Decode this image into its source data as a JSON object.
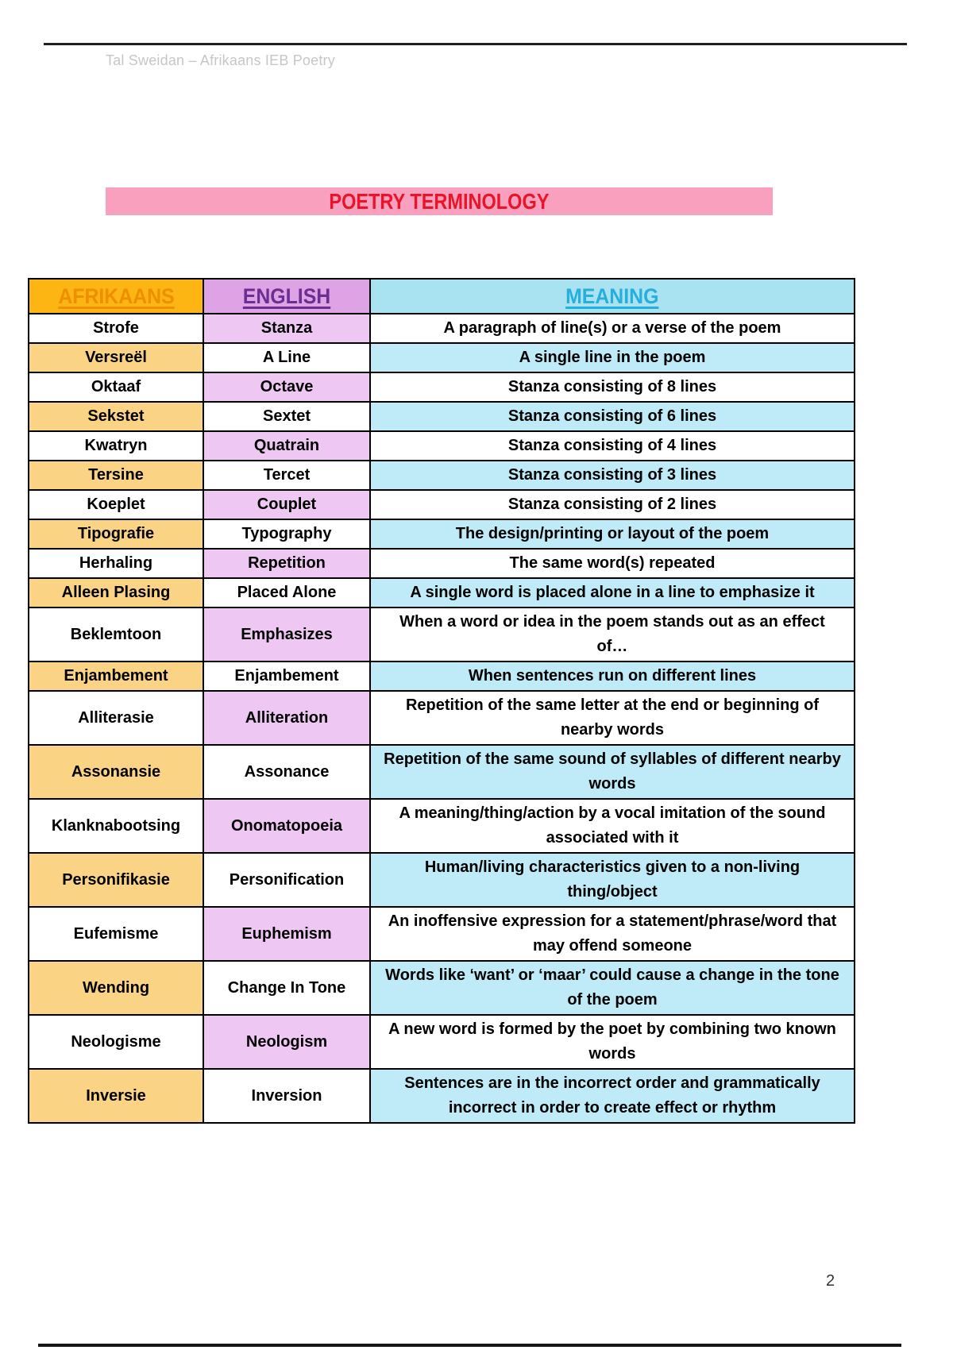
{
  "page": {
    "running_header": "Tal Sweidan – Afrikaans IEB Poetry",
    "page_number": "2"
  },
  "title_banner": {
    "text": "POETRY TERMINOLOGY"
  },
  "colors": {
    "banner_bg": "#F8A0BE",
    "banner_text": "#E81429",
    "header_afrikaans_bg": "#FCB513",
    "header_afrikaans_text": "#EE8F00",
    "header_english_bg": "#DEA3E4",
    "header_english_text": "#6B2E91",
    "header_meaning_bg": "#A9E3F2",
    "header_meaning_text": "#26AEDC",
    "cell_orange": "#FBD385",
    "cell_purple": "#EEC8F2",
    "cell_cyan": "#BEEBF7",
    "border": "#000000"
  },
  "table": {
    "columns": [
      "AFRIKAANS",
      "ENGLISH",
      "MEANING"
    ],
    "rows": [
      {
        "afrikaans": "Strofe",
        "english": "Stanza",
        "meaning": "A paragraph of line(s) or a verse of the poem"
      },
      {
        "afrikaans": "Versreël",
        "english": "A Line",
        "meaning": "A single line in the poem"
      },
      {
        "afrikaans": "Oktaaf",
        "english": "Octave",
        "meaning": "Stanza consisting of 8 lines"
      },
      {
        "afrikaans": "Sekstet",
        "english": "Sextet",
        "meaning": "Stanza consisting of 6 lines"
      },
      {
        "afrikaans": "Kwatryn",
        "english": "Quatrain",
        "meaning": "Stanza consisting of 4 lines"
      },
      {
        "afrikaans": "Tersine",
        "english": "Tercet",
        "meaning": "Stanza consisting of 3 lines"
      },
      {
        "afrikaans": "Koeplet",
        "english": "Couplet",
        "meaning": "Stanza consisting of 2 lines"
      },
      {
        "afrikaans": "Tipografie",
        "english": "Typography",
        "meaning": "The design/printing or layout of the poem"
      },
      {
        "afrikaans": "Herhaling",
        "english": "Repetition",
        "meaning": "The same word(s) repeated"
      },
      {
        "afrikaans": "Alleen Plasing",
        "english": "Placed Alone",
        "meaning": "A single word is placed alone in a line to emphasize it"
      },
      {
        "afrikaans": "Beklemtoon",
        "english": "Emphasizes",
        "meaning": "When a word or idea in the poem stands out as an effect of…"
      },
      {
        "afrikaans": "Enjambement",
        "english": "Enjambement",
        "meaning": "When sentences run on different lines"
      },
      {
        "afrikaans": "Alliterasie",
        "english": "Alliteration",
        "meaning": "Repetition of the same letter at the end or beginning of nearby words"
      },
      {
        "afrikaans": "Assonansie",
        "english": "Assonance",
        "meaning": "Repetition of the same sound of syllables of different nearby words"
      },
      {
        "afrikaans": "Klanknabootsing",
        "english": "Onomatopoeia",
        "meaning": "A meaning/thing/action by a vocal imitation of the sound associated with it"
      },
      {
        "afrikaans": "Personifikasie",
        "english": "Personification",
        "meaning": "Human/living characteristics given to a non-living thing/object"
      },
      {
        "afrikaans": "Eufemisme",
        "english": "Euphemism",
        "meaning": "An inoffensive expression for a statement/phrase/word that may offend someone"
      },
      {
        "afrikaans": "Wending",
        "english": "Change In Tone",
        "meaning": "Words like ‘want’ or ‘maar’ could cause a change in the tone of the poem"
      },
      {
        "afrikaans": "Neologisme",
        "english": "Neologism",
        "meaning": "A new word is formed by the poet by combining two known words"
      },
      {
        "afrikaans": "Inversie",
        "english": "Inversion",
        "meaning": "Sentences are in the incorrect order and grammatically incorrect in order to create effect or rhythm"
      }
    ]
  }
}
